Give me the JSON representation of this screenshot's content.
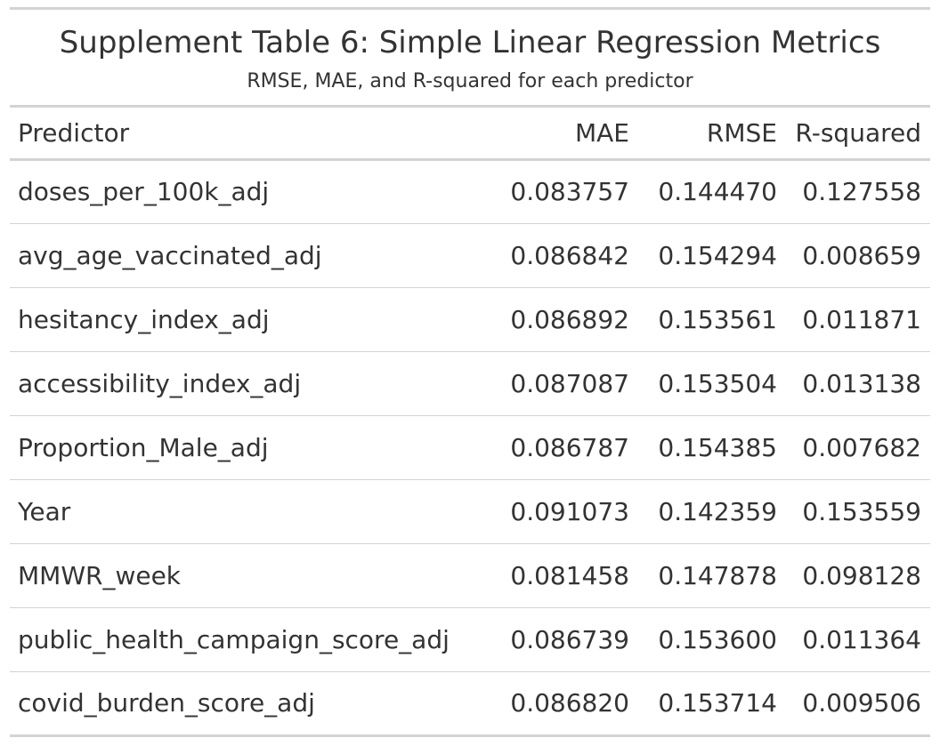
{
  "table": {
    "title": "Supplement Table 6: Simple Linear Regression Metrics",
    "subtitle": "RMSE, MAE, and R-squared for each predictor",
    "columns": [
      "Predictor",
      "MAE",
      "RMSE",
      "R-squared"
    ],
    "rows": [
      [
        "doses_per_100k_adj",
        "0.083757",
        "0.144470",
        "0.127558"
      ],
      [
        "avg_age_vaccinated_adj",
        "0.086842",
        "0.154294",
        "0.008659"
      ],
      [
        "hesitancy_index_adj",
        "0.086892",
        "0.153561",
        "0.011871"
      ],
      [
        "accessibility_index_adj",
        "0.087087",
        "0.153504",
        "0.013138"
      ],
      [
        "Proportion_Male_adj",
        "0.086787",
        "0.154385",
        "0.007682"
      ],
      [
        "Year",
        "0.091073",
        "0.142359",
        "0.153559"
      ],
      [
        "MMWR_week",
        "0.081458",
        "0.147878",
        "0.098128"
      ],
      [
        "public_health_campaign_score_adj",
        "0.086739",
        "0.153600",
        "0.011364"
      ],
      [
        "covid_burden_score_adj",
        "0.086820",
        "0.153714",
        "0.009506"
      ]
    ]
  }
}
